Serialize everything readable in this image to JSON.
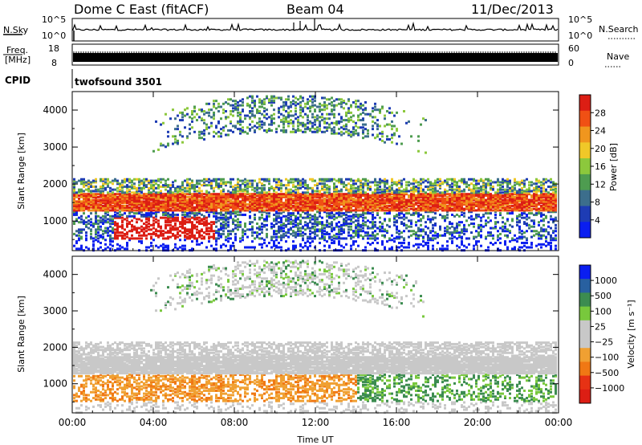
{
  "header": {
    "station": "Dome C East (fitACF)",
    "beam": "Beam 04",
    "date": "11/Dec/2013"
  },
  "strip_labels": {
    "nsky": "N.Sky",
    "nsky_ticks": [
      "10^5",
      "10^0"
    ],
    "nsearch": "N.Search",
    "nsearch_ticks": [
      "10^5",
      "10^0"
    ],
    "freq_line1": "Freq.",
    "freq_line2": "[MHz]",
    "freq_ticks": [
      "18",
      "8"
    ],
    "nave": "Nave",
    "nave_ticks": [
      "60",
      "0"
    ],
    "cpid": "CPID",
    "cpid_value": "twofsound 3501"
  },
  "colors": {
    "power": [
      "#0a1ef0",
      "#1e3cb4",
      "#3c6e8c",
      "#4e9c50",
      "#8cc83c",
      "#f0c828",
      "#f0961e",
      "#f05014",
      "#dc1e14"
    ],
    "velocity": [
      "#0a1ef0",
      "#2860a0",
      "#3c8c50",
      "#78c83c",
      "#c8c8c8",
      "#c8c8c8",
      "#f0a032",
      "#f07814",
      "#e63214",
      "#dc1e14"
    ]
  },
  "chart_data": [
    {
      "type": "heatmap",
      "panel": "power",
      "ylabel": "Slant Range [km]",
      "y_ticks": [
        "1000",
        "2000",
        "3000",
        "4000"
      ],
      "ylim": [
        200,
        4500
      ],
      "x_ticks": [
        "00:00",
        "04:00",
        "08:00",
        "12:00",
        "16:00",
        "20:00",
        "00:00"
      ],
      "xlim_hours": [
        0,
        24
      ],
      "colorbar_label": "Power [dB]",
      "colorbar_ticks": [
        "4",
        "8",
        "12",
        "16",
        "20",
        "24",
        "28"
      ],
      "color_range": [
        0,
        30
      ]
    },
    {
      "type": "heatmap",
      "panel": "velocity",
      "ylabel": "Slant Range [km]",
      "y_ticks": [
        "1000",
        "2000",
        "3000",
        "4000"
      ],
      "ylim": [
        200,
        4500
      ],
      "x_ticks": [
        "00:00",
        "04:00",
        "08:00",
        "12:00",
        "16:00",
        "20:00",
        "00:00"
      ],
      "xlim_hours": [
        0,
        24
      ],
      "xlabel": "Time UT",
      "colorbar_label": "Velocity [m s⁻¹]",
      "colorbar_ticks": [
        "1000",
        "500",
        "100",
        "25",
        "−25",
        "−100",
        "−500",
        "−1000"
      ],
      "color_range": [
        -1200,
        1200
      ]
    }
  ]
}
